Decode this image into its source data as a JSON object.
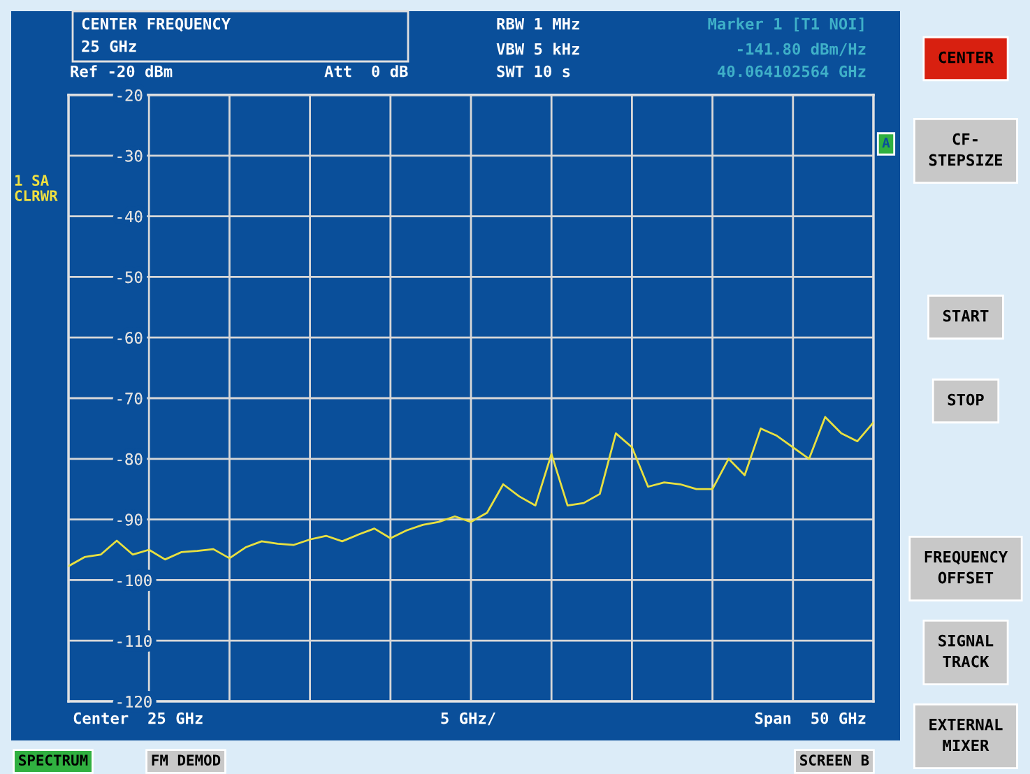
{
  "chart_data": {
    "type": "line",
    "categories": [
      null,
      null,
      null,
      null,
      null,
      null,
      null,
      null,
      null,
      null,
      null,
      null,
      null,
      null,
      null,
      null,
      null,
      null,
      null,
      null,
      null,
      null,
      null,
      null,
      null,
      null,
      null,
      null,
      null,
      null,
      null,
      null,
      null,
      null,
      null,
      null,
      null,
      null,
      null,
      null,
      null,
      null,
      null,
      null,
      null,
      null,
      null,
      null,
      null,
      null,
      null
    ],
    "series": [
      {
        "color": "#e8e040",
        "values": [
          -97.7,
          -96.2,
          -95.8,
          -93.5,
          -95.8,
          -95.0,
          -96.6,
          -95.4,
          -95.2,
          -94.9,
          -96.4,
          -94.6,
          -93.6,
          -94.0,
          -94.2,
          -93.3,
          -92.7,
          -93.6,
          -92.5,
          -91.5,
          -93.1,
          -91.8,
          -90.9,
          -90.4,
          -89.5,
          -90.4,
          -88.9,
          -84.2,
          -86.2,
          -87.7,
          -79.2,
          -87.7,
          -87.3,
          -85.8,
          -75.8,
          -78.1,
          -84.6,
          -83.9,
          -84.2,
          -85.0,
          -85.0,
          -80.0,
          -82.7,
          -75.0,
          -76.2,
          -78.1,
          -80.0,
          -73.1,
          -75.8,
          -77.1,
          -74.0
        ]
      }
    ],
    "ylim": [
      -120,
      -20
    ],
    "yticks": [
      -120,
      -110,
      -100,
      -90,
      -80,
      -70,
      -60,
      -50,
      -40,
      -30,
      -20
    ],
    "grid": true,
    "marker": "none",
    "line_style": "solid",
    "annotations": [
      "CENTER FREQUENCY",
      "25 GHz",
      "Ref -20 dBm",
      "Att  0 dB",
      "RBW 1 MHz",
      "VBW 5 kHz",
      "SWT 10 s",
      "Marker 1 [T1 NOI]",
      "-141.80 dBm/Hz",
      "40.064102564 GHz",
      "1 SA",
      "CLRWR",
      "A",
      "Center  25 GHz",
      "5 GHz/",
      "Span  50 GHz",
      "CENTER",
      "CF-\nSTEPSIZE",
      "START",
      "STOP",
      "FREQUENCY\nOFFSET",
      "SIGNAL\nTRACK",
      "EXTERNAL\nMIXER",
      "SPECTRUM",
      "FM DEMOD",
      "SCREEN B"
    ]
  }
}
